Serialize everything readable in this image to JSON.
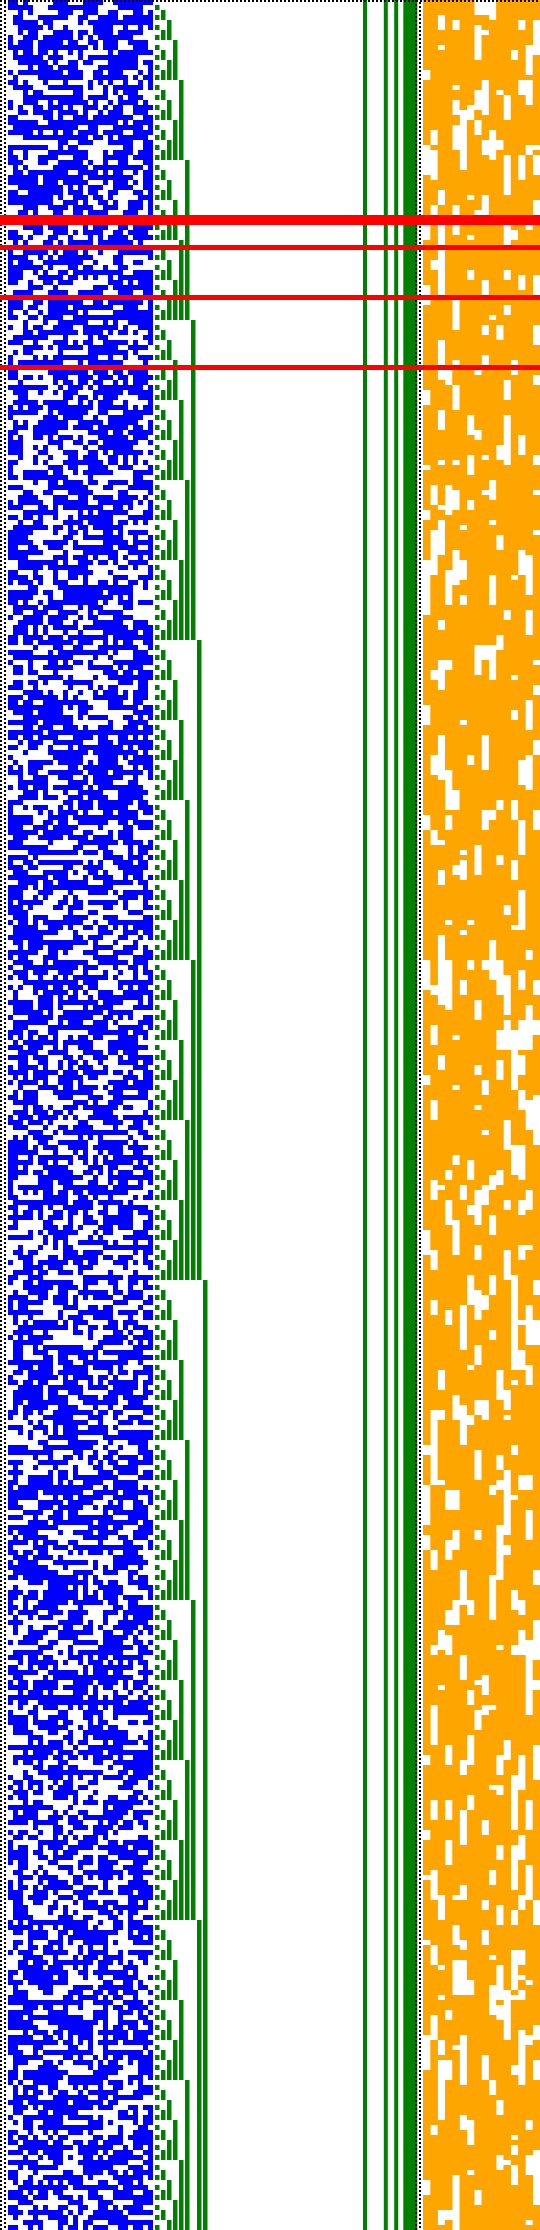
{
  "grid": {
    "rows": 446,
    "seed": 1337,
    "background_color": "#ffffff",
    "panels": [
      {
        "name": "blue-panel",
        "color": "#0000ff",
        "columns": 29,
        "density": 0.5,
        "fill_style": "random-noise"
      },
      {
        "name": "green-panel",
        "color": "#008000",
        "columns": 28,
        "fill_style": "binary-counter"
      },
      {
        "name": "orange-panel",
        "color": "#ffa500",
        "columns": 16,
        "density": 0.62,
        "fill_style": "column-runs"
      }
    ],
    "separator": {
      "color": "#000000",
      "style": "dotted"
    },
    "highlight_rows": {
      "color": "#ff0000",
      "rows": [
        43,
        44,
        49,
        59,
        73
      ]
    }
  }
}
